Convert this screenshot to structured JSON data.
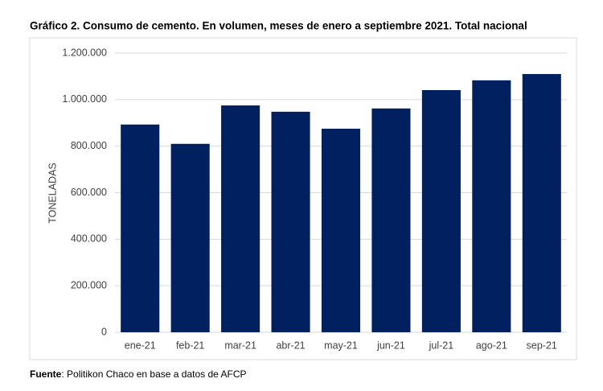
{
  "chart_data": {
    "type": "bar",
    "title": "Gráfico 2. Consumo de cemento. En volumen, meses de enero a septiembre 2021. Total nacional",
    "y_label": "TONELADAS",
    "categories": [
      "ene-21",
      "feb-21",
      "mar-21",
      "abr-21",
      "may-21",
      "jun-21",
      "jul-21",
      "ago-21",
      "sep-21"
    ],
    "values": [
      893000,
      810000,
      975000,
      948000,
      875000,
      962000,
      1041000,
      1083000,
      1110000
    ],
    "color": "#002060",
    "ylim": [
      0,
      1200000
    ],
    "yticks": [
      0,
      {
        "value": 200000,
        "label": "200.000"
      },
      {
        "value": 400000,
        "label": "400.000"
      },
      {
        "value": 600000,
        "label": "600.000"
      },
      {
        "value": 800000,
        "label": "800.000"
      },
      {
        "value": 1000000,
        "label": "1.000.000"
      },
      {
        "value": 1200000,
        "label": "1.200.000"
      }
    ],
    "grid": true
  },
  "source": {
    "label": "Fuente",
    "text": ": Politikon Chaco en base a datos de AFCP"
  }
}
